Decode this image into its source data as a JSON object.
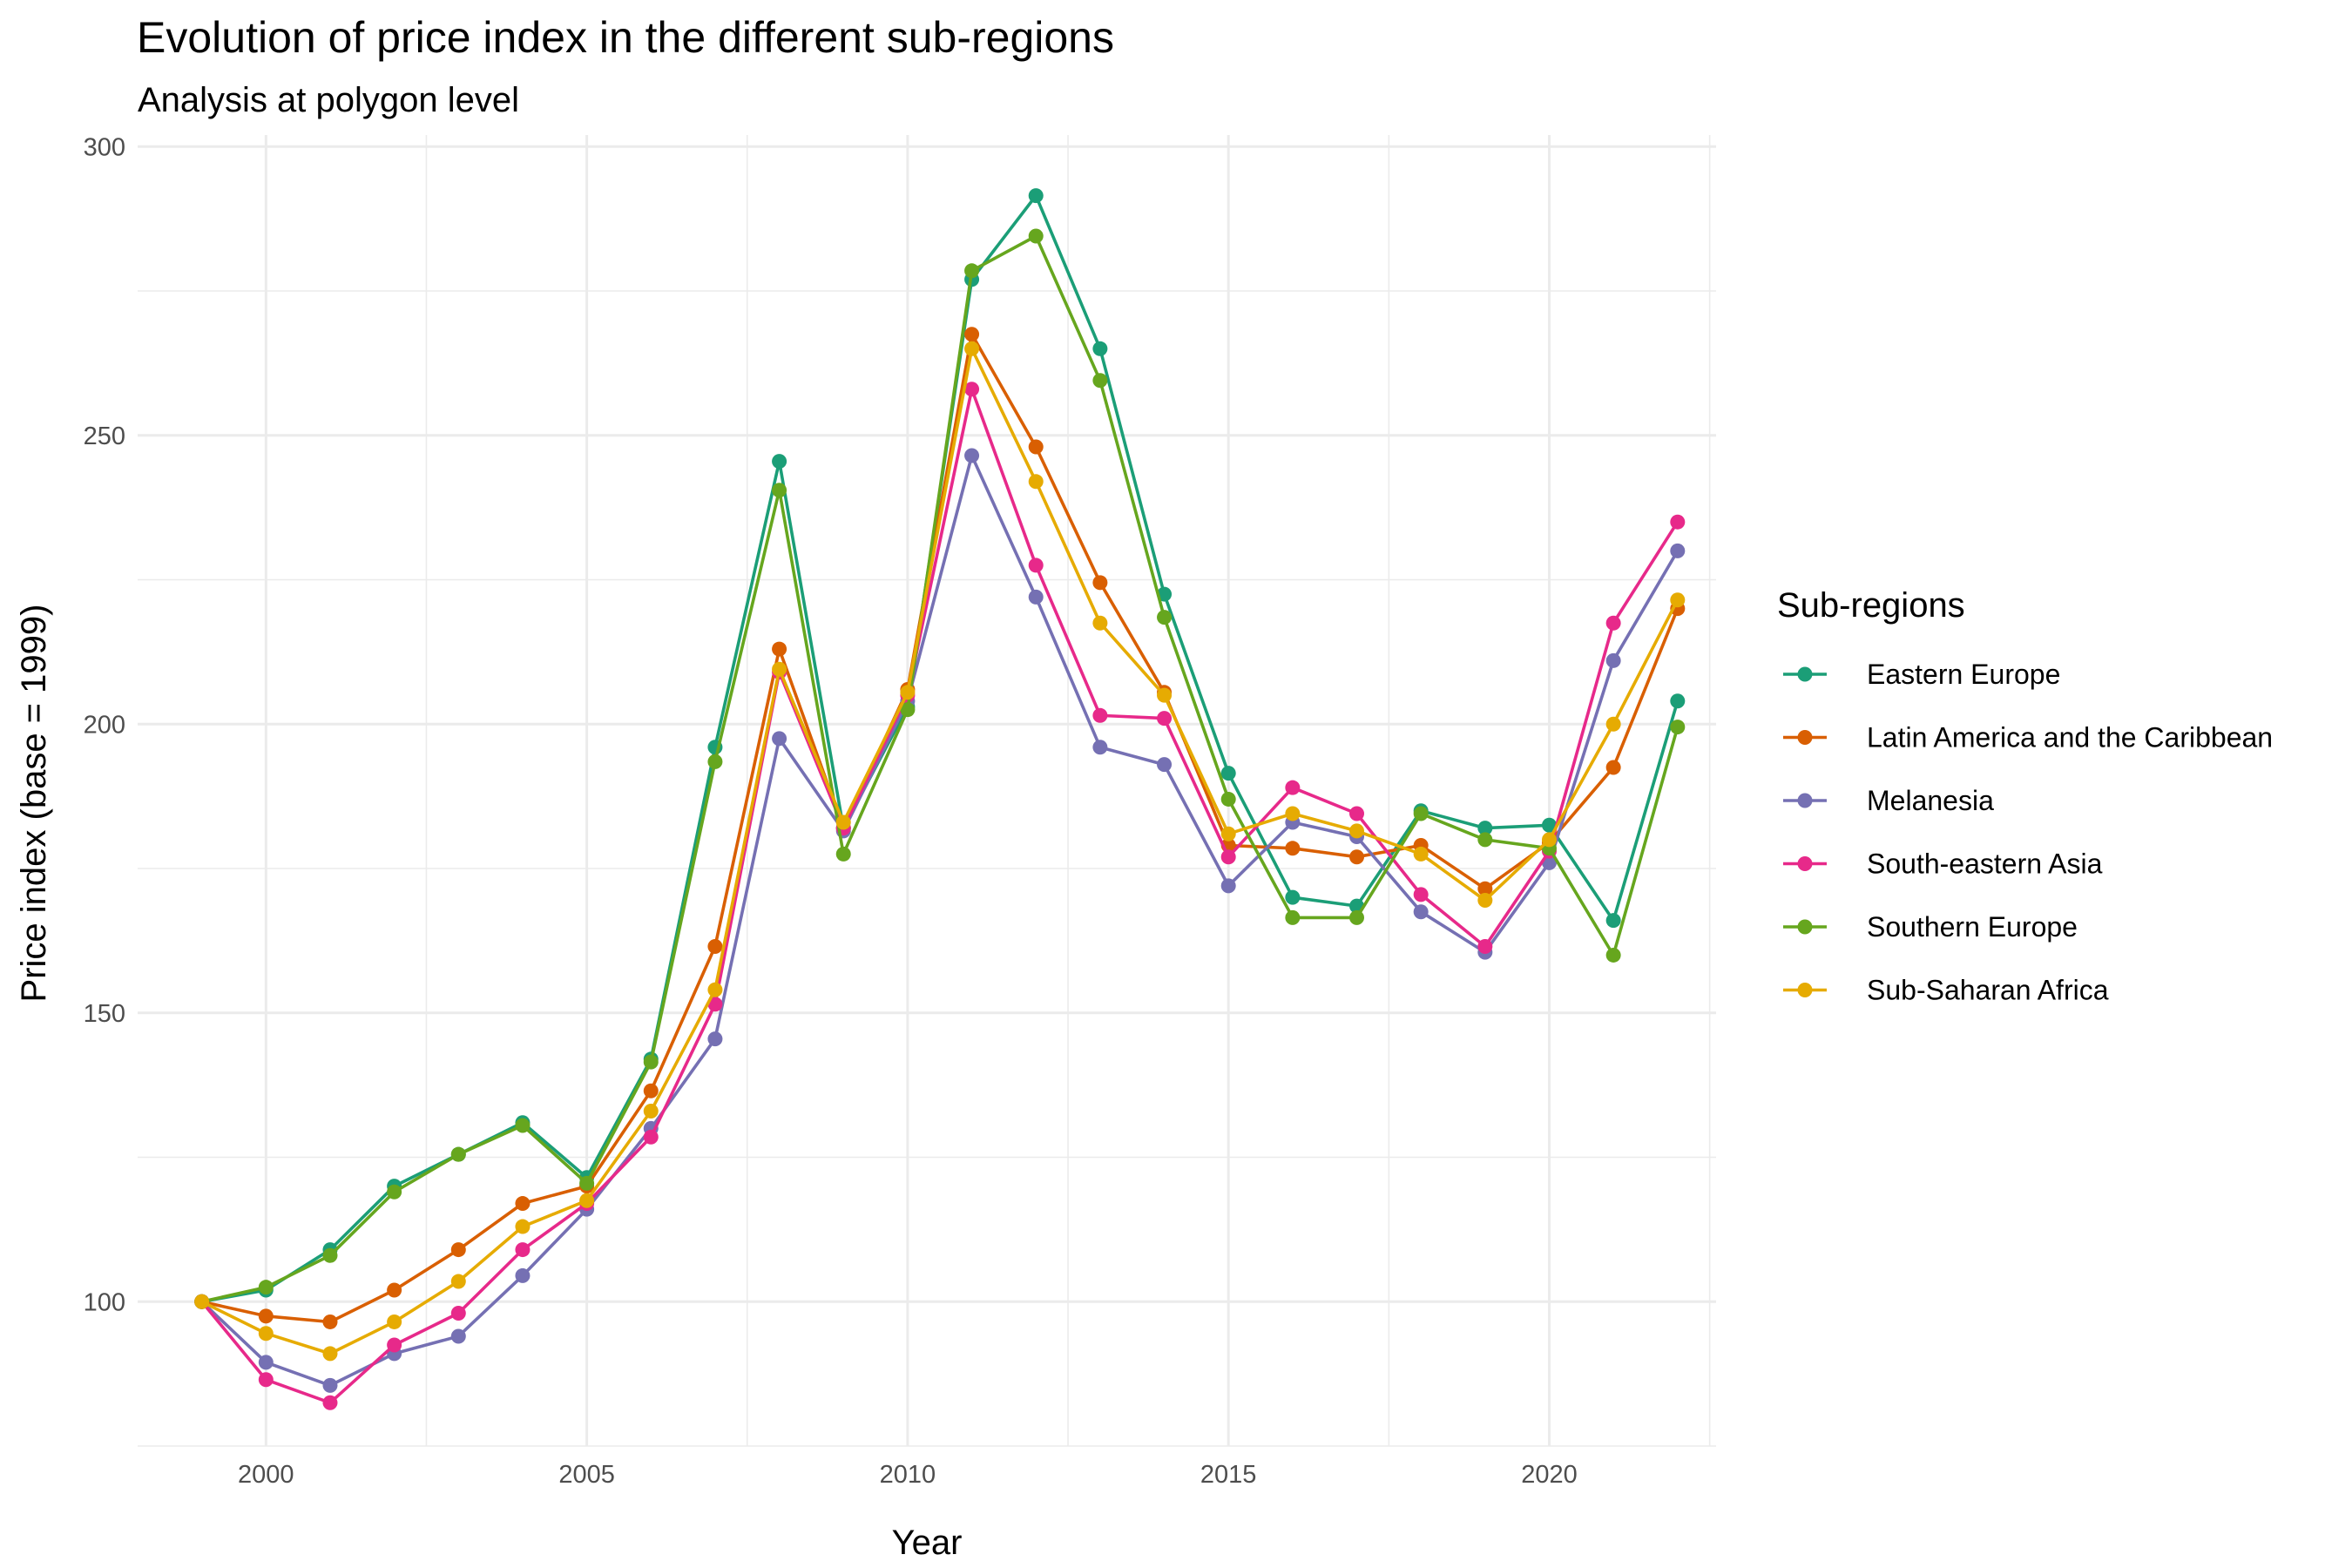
{
  "chart_data": {
    "type": "line",
    "title": "Evolution of price index in the different sub-regions",
    "subtitle": "Analysis at polygon level",
    "xlabel": "Year",
    "ylabel": "Price index (base = 1999)",
    "xlim": [
      1998,
      2022.6
    ],
    "ylim": [
      75,
      302
    ],
    "x_ticks": [
      2000,
      2005,
      2010,
      2015,
      2020
    ],
    "y_ticks": [
      100,
      150,
      200,
      250,
      300
    ],
    "grid": true,
    "legend_title": "Sub-regions",
    "legend_position": "right",
    "x": [
      1999,
      2000,
      2001,
      2002,
      2003,
      2004,
      2005,
      2006,
      2007,
      2008,
      2009,
      2010,
      2011,
      2012,
      2013,
      2014,
      2015,
      2016,
      2017,
      2018,
      2019,
      2020,
      2021,
      2022
    ],
    "series": [
      {
        "name": "Eastern Europe",
        "color": "#1b9e77",
        "values": [
          100,
          102,
          109,
          120,
          125.5,
          131,
          121.5,
          142,
          196,
          245.5,
          182,
          203,
          277,
          291.5,
          265,
          222.5,
          191.5,
          170,
          168.5,
          185,
          182,
          182.5,
          166,
          204
        ]
      },
      {
        "name": "Latin America and the Caribbean",
        "color": "#d95f02",
        "values": [
          100,
          97.5,
          96.5,
          102,
          109,
          117,
          120,
          136.5,
          161.5,
          213,
          182,
          206,
          267.5,
          248,
          224.5,
          205.5,
          179,
          178.5,
          177,
          179,
          171.5,
          179.5,
          192.5,
          220
        ]
      },
      {
        "name": "Melanesia",
        "color": "#7570b3",
        "values": [
          100,
          89.5,
          85.5,
          91,
          94,
          104.5,
          116,
          130,
          145.5,
          197.5,
          181.5,
          204,
          246.5,
          222,
          196,
          193,
          172,
          183,
          180.5,
          167.5,
          160.5,
          176,
          211,
          230
        ]
      },
      {
        "name": "South-eastern Asia",
        "color": "#e7298a",
        "values": [
          100,
          86.5,
          82.5,
          92.5,
          98,
          109,
          117,
          128.5,
          151.5,
          209,
          182,
          205,
          258,
          227.5,
          201.5,
          201,
          177,
          189,
          184.5,
          170.5,
          161.5,
          178,
          217.5,
          235
        ]
      },
      {
        "name": "Southern Europe",
        "color": "#66a61e",
        "values": [
          100,
          102.5,
          108,
          119,
          125.5,
          130.5,
          120.5,
          141.5,
          193.5,
          240.5,
          177.5,
          202.5,
          278.5,
          284.5,
          259.5,
          218.5,
          187,
          166.5,
          166.5,
          184.5,
          180,
          178.5,
          160,
          199.5
        ]
      },
      {
        "name": "Sub-Saharan Africa",
        "color": "#e6ab02",
        "values": [
          100,
          94.5,
          91,
          96.5,
          103.5,
          113,
          117.5,
          133,
          154,
          209.5,
          183,
          205.5,
          265,
          242,
          217.5,
          205,
          181,
          184.5,
          181.5,
          177.5,
          169.5,
          180,
          200,
          221.5
        ]
      }
    ]
  }
}
